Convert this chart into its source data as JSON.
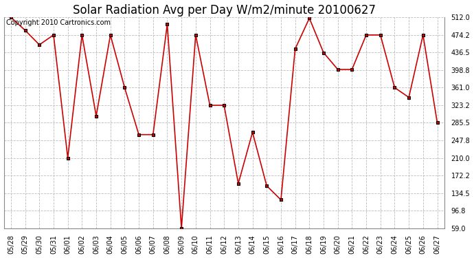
{
  "title": "Solar Radiation Avg per Day W/m2/minute 20100627",
  "copyright": "Copyright 2010 Cartronics.com",
  "x_labels": [
    "05/28",
    "05/29",
    "05/30",
    "05/31",
    "06/01",
    "06/02",
    "06/03",
    "06/04",
    "06/05",
    "06/06",
    "06/07",
    "06/08",
    "06/09",
    "06/10",
    "06/11",
    "06/12",
    "06/13",
    "06/14",
    "06/15",
    "06/16",
    "06/17",
    "06/18",
    "06/19",
    "06/20",
    "06/21",
    "06/22",
    "06/23",
    "06/24",
    "06/25",
    "06/26",
    "06/27"
  ],
  "y_values": [
    512.0,
    484.0,
    453.0,
    474.0,
    210.0,
    474.0,
    300.0,
    474.0,
    361.0,
    260.0,
    260.0,
    497.0,
    59.0,
    474.0,
    323.0,
    323.0,
    155.0,
    265.0,
    150.0,
    120.0,
    444.0,
    510.0,
    436.0,
    400.0,
    400.0,
    474.0,
    474.0,
    361.0,
    340.0,
    474.0,
    285.5
  ],
  "yticks": [
    59.0,
    96.8,
    134.5,
    172.2,
    210.0,
    247.8,
    285.5,
    323.2,
    361.0,
    398.8,
    436.5,
    474.2,
    512.0
  ],
  "ytick_labels": [
    "59.0",
    "96.8",
    "134.5",
    "172.2",
    "210.0",
    "247.8",
    "285.5",
    "323.2",
    "361.0",
    "398.8",
    "436.5",
    "474.2",
    "512.0"
  ],
  "line_color": "#cc0000",
  "marker_color": "#000000",
  "marker_face": "#cc0000",
  "bg_color": "#ffffff",
  "grid_color": "#bbbbbb",
  "title_fontsize": 12,
  "tick_fontsize": 7,
  "copyright_fontsize": 7
}
